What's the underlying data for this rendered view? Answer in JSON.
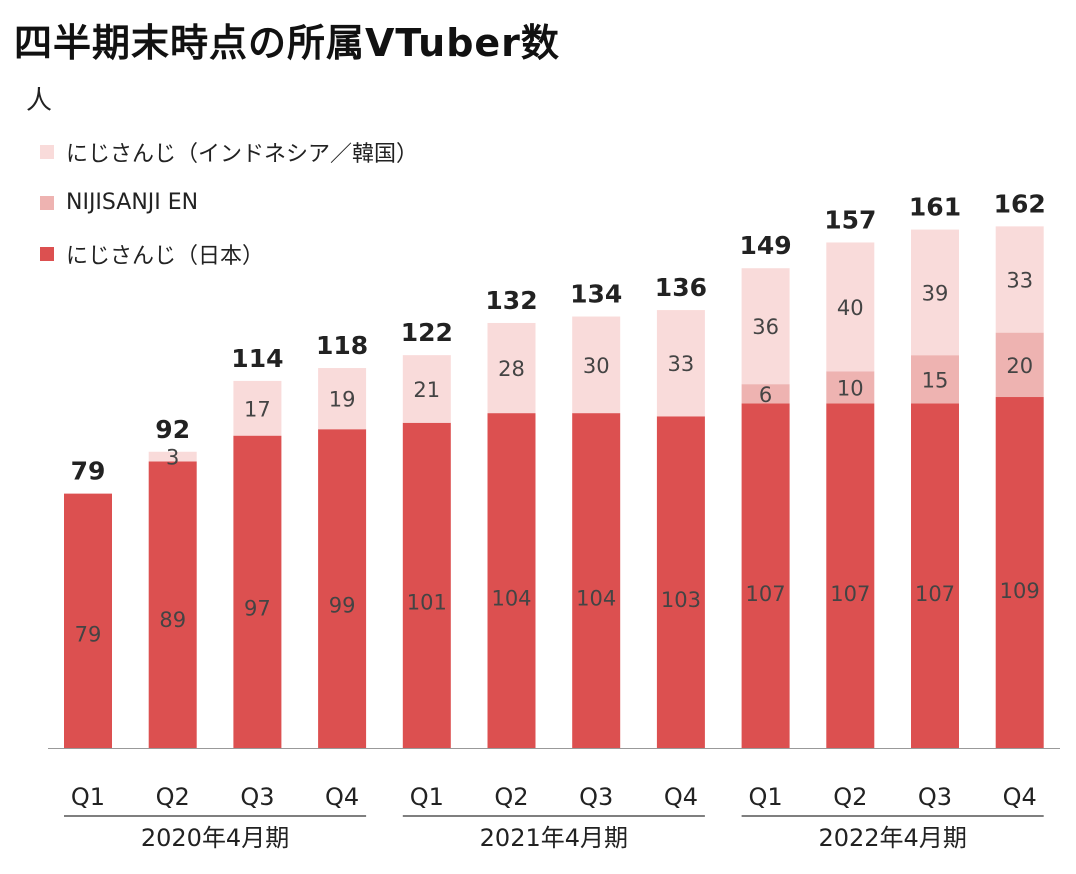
{
  "header": {
    "title": "四半期末時点の所属VTuber数",
    "unit": "人"
  },
  "colors": {
    "japan": "#dc5050",
    "en": "#eeb3b1",
    "id_kr": "#f9dbda",
    "axis": "#999999"
  },
  "chart_data": {
    "type": "bar",
    "stacked": true,
    "title": "四半期末時点の所属VTuber数",
    "ylabel": "人",
    "categories": [
      "Q1",
      "Q2",
      "Q3",
      "Q4",
      "Q1",
      "Q2",
      "Q3",
      "Q4",
      "Q1",
      "Q2",
      "Q3",
      "Q4"
    ],
    "groups": [
      {
        "label": "2020年4月期",
        "categories": [
          "Q1",
          "Q2",
          "Q3",
          "Q4"
        ]
      },
      {
        "label": "2021年4月期",
        "categories": [
          "Q1",
          "Q2",
          "Q3",
          "Q4"
        ]
      },
      {
        "label": "2022年4月期",
        "categories": [
          "Q1",
          "Q2",
          "Q3",
          "Q4"
        ]
      }
    ],
    "series": [
      {
        "name": "にじさんじ（日本）",
        "color": "#dc5050",
        "values": [
          79,
          89,
          97,
          99,
          101,
          104,
          104,
          103,
          107,
          107,
          107,
          109
        ]
      },
      {
        "name": "NIJISANJI EN",
        "color": "#eeb3b1",
        "values": [
          0,
          0,
          0,
          0,
          0,
          0,
          0,
          0,
          6,
          10,
          15,
          20
        ]
      },
      {
        "name": "にじさんじ（インドネシア／韓国）",
        "color": "#f9dbda",
        "values": [
          0,
          3,
          17,
          19,
          21,
          28,
          30,
          33,
          36,
          40,
          39,
          33
        ]
      }
    ],
    "totals": [
      79,
      92,
      114,
      118,
      122,
      132,
      134,
      136,
      149,
      157,
      161,
      162
    ],
    "legend_order": [
      "にじさんじ（インドネシア／韓国）",
      "NIJISANJI EN",
      "にじさんじ（日本）"
    ],
    "legend_position": "top-left",
    "grid": false
  }
}
